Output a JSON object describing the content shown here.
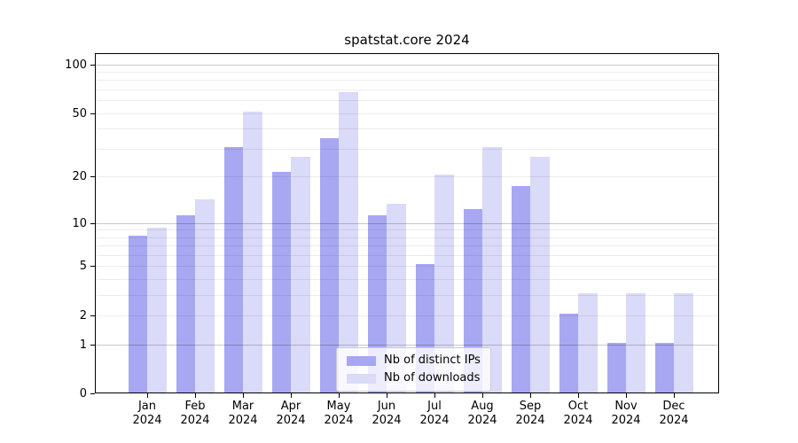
{
  "title": "spatstat.core 2024",
  "colors": {
    "ips_bar": "#a7a7f2",
    "downloads_bar": "#dadaf9",
    "axis": "#000000",
    "legend_border": "#cccccc"
  },
  "legend": {
    "items": [
      {
        "label": "Nb of distinct IPs",
        "series": "ips"
      },
      {
        "label": "Nb of downloads",
        "series": "downloads"
      }
    ]
  },
  "chart_data": {
    "type": "bar",
    "title": "spatstat.core 2024",
    "scale": "log1p",
    "year": "2024",
    "categories": [
      "Jan",
      "Feb",
      "Mar",
      "Apr",
      "May",
      "Jun",
      "Jul",
      "Aug",
      "Sep",
      "Oct",
      "Nov",
      "Dec"
    ],
    "series": [
      {
        "name": "Nb of distinct IPs",
        "color": "#a7a7f2",
        "values": [
          8,
          11,
          30,
          21,
          34,
          11,
          5,
          12,
          17,
          2,
          1,
          1
        ]
      },
      {
        "name": "Nb of downloads",
        "color": "#dadaf9",
        "values": [
          9,
          14,
          50,
          26,
          66,
          13,
          20,
          30,
          26,
          3,
          3,
          3
        ]
      }
    ],
    "xlabel": "",
    "ylabel": "",
    "y_ticks": [
      0,
      1,
      2,
      5,
      10,
      20,
      50,
      100
    ],
    "y_major_gridlines": [
      1,
      10,
      100
    ],
    "y_minor_gridlines": [
      2,
      3,
      4,
      5,
      6,
      7,
      8,
      9,
      20,
      30,
      40,
      50,
      60,
      70,
      80,
      90
    ],
    "ylim": [
      0,
      115
    ],
    "grid": true,
    "legend_position": "lower center"
  }
}
